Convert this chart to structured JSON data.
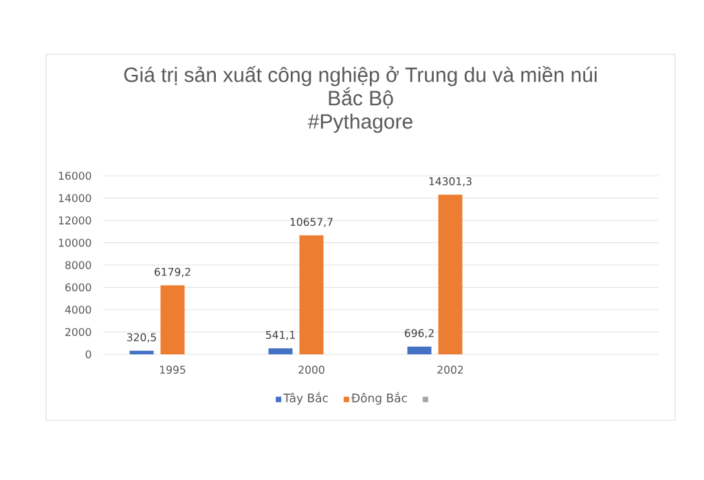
{
  "chart_data": {
    "type": "bar",
    "title": "Giá trị sản xuất công nghiệp ở Trung du và miền núi Bắc Bộ",
    "subtitle": "#Pythagore",
    "categories": [
      "1995",
      "2000",
      "2002",
      null
    ],
    "series": [
      {
        "name": "Tây Bắc",
        "color": "#4472c4",
        "values": [
          320.5,
          541.1,
          696.2,
          null
        ],
        "value_labels": [
          "320,5",
          "541,1",
          "696,2",
          null
        ]
      },
      {
        "name": "Đông Bắc",
        "color": "#ed7d31",
        "values": [
          6179.2,
          10657.7,
          14301.3,
          null
        ],
        "value_labels": [
          "6179,2",
          "10657,7",
          "14301,3",
          null
        ]
      },
      {
        "color": "#a5a5a5",
        "values": [
          null,
          null,
          null,
          null
        ]
      }
    ],
    "ylim": [
      0,
      16000
    ],
    "yticks": [
      0,
      2000,
      4000,
      6000,
      8000,
      10000,
      12000,
      14000,
      16000
    ],
    "grid": "y",
    "legend": "bottom"
  }
}
